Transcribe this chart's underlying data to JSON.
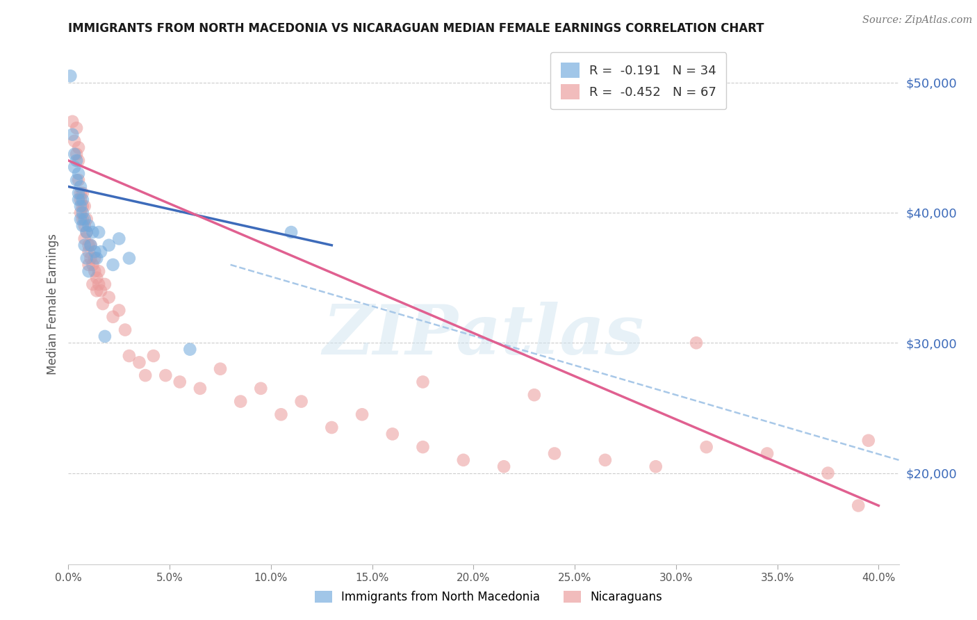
{
  "title": "IMMIGRANTS FROM NORTH MACEDONIA VS NICARAGUAN MEDIAN FEMALE EARNINGS CORRELATION CHART",
  "source": "Source: ZipAtlas.com",
  "ylabel": "Median Female Earnings",
  "right_ytick_labels": [
    "$50,000",
    "$40,000",
    "$30,000",
    "$20,000"
  ],
  "right_ytick_values": [
    50000,
    40000,
    30000,
    20000
  ],
  "watermark": "ZIPatlas",
  "legend_blue_r": "-0.191",
  "legend_blue_n": "34",
  "legend_pink_r": "-0.452",
  "legend_pink_n": "67",
  "blue_scatter_x": [
    0.001,
    0.002,
    0.003,
    0.003,
    0.004,
    0.004,
    0.005,
    0.005,
    0.005,
    0.006,
    0.006,
    0.006,
    0.007,
    0.007,
    0.007,
    0.008,
    0.008,
    0.009,
    0.009,
    0.01,
    0.01,
    0.011,
    0.012,
    0.013,
    0.014,
    0.015,
    0.016,
    0.018,
    0.02,
    0.022,
    0.025,
    0.03,
    0.06,
    0.11
  ],
  "blue_scatter_y": [
    50500,
    46000,
    44500,
    43500,
    44000,
    42500,
    41500,
    43000,
    41000,
    42000,
    40500,
    39500,
    41000,
    40000,
    39000,
    39500,
    37500,
    38500,
    36500,
    39000,
    35500,
    37500,
    38500,
    37000,
    36500,
    38500,
    37000,
    30500,
    37500,
    36000,
    38000,
    36500,
    29500,
    38500
  ],
  "pink_scatter_x": [
    0.002,
    0.003,
    0.004,
    0.004,
    0.005,
    0.005,
    0.005,
    0.006,
    0.006,
    0.006,
    0.007,
    0.007,
    0.007,
    0.008,
    0.008,
    0.008,
    0.009,
    0.009,
    0.01,
    0.01,
    0.01,
    0.011,
    0.011,
    0.012,
    0.012,
    0.013,
    0.013,
    0.014,
    0.014,
    0.015,
    0.015,
    0.016,
    0.017,
    0.018,
    0.02,
    0.022,
    0.025,
    0.028,
    0.03,
    0.035,
    0.038,
    0.042,
    0.048,
    0.055,
    0.065,
    0.075,
    0.085,
    0.095,
    0.105,
    0.115,
    0.13,
    0.145,
    0.16,
    0.175,
    0.195,
    0.215,
    0.24,
    0.265,
    0.29,
    0.315,
    0.345,
    0.375,
    0.395,
    0.175,
    0.23,
    0.31,
    0.39
  ],
  "pink_scatter_y": [
    47000,
    45500,
    44500,
    46500,
    44000,
    42500,
    45000,
    41500,
    41000,
    40000,
    41500,
    40500,
    39500,
    39000,
    38000,
    40500,
    39500,
    38500,
    37500,
    37000,
    36000,
    37500,
    36500,
    36000,
    34500,
    36500,
    35500,
    35000,
    34000,
    35500,
    34500,
    34000,
    33000,
    34500,
    33500,
    32000,
    32500,
    31000,
    29000,
    28500,
    27500,
    29000,
    27500,
    27000,
    26500,
    28000,
    25500,
    26500,
    24500,
    25500,
    23500,
    24500,
    23000,
    22000,
    21000,
    20500,
    21500,
    21000,
    20500,
    22000,
    21500,
    20000,
    22500,
    27000,
    26000,
    30000,
    17500
  ],
  "blue_color": "#6fa8dc",
  "pink_color": "#ea9999",
  "blue_line_color": "#3d6bba",
  "pink_line_color": "#e06090",
  "dashed_line_color": "#a8c8e8",
  "xlim": [
    0.0,
    0.41
  ],
  "ylim": [
    13000,
    53000
  ],
  "background_color": "#ffffff",
  "grid_color": "#cccccc",
  "blue_trendline_x": [
    0.0,
    0.13
  ],
  "blue_trendline_y": [
    42000,
    37500
  ],
  "pink_trendline_x": [
    0.0,
    0.4
  ],
  "pink_trendline_y": [
    44000,
    17500
  ],
  "dashed_trendline_x": [
    0.08,
    0.41
  ],
  "dashed_trendline_y": [
    36000,
    21000
  ]
}
